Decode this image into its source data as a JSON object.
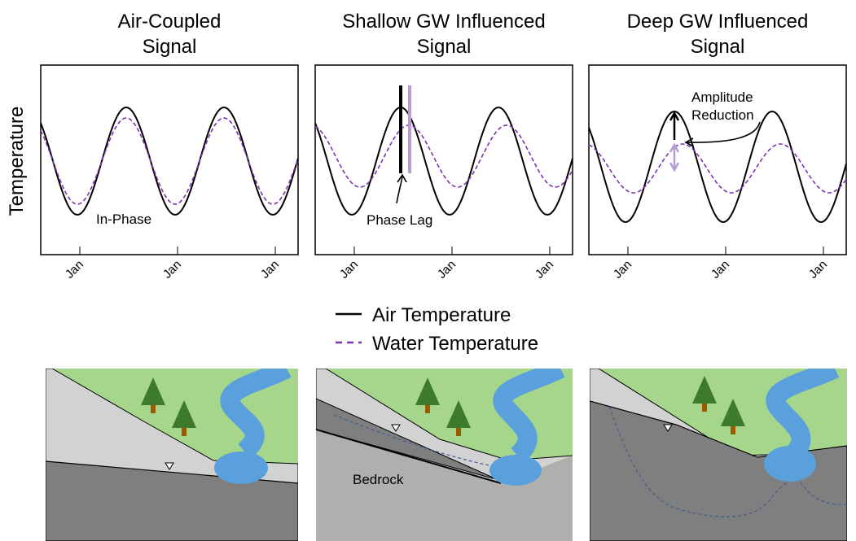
{
  "y_axis_label": "Temperature",
  "panels": [
    {
      "title_lines": [
        "Air-Coupled",
        "Signal"
      ],
      "x_tick_labels": [
        "Jan",
        "Jan",
        "Jan"
      ],
      "annotation_lines": [
        "In-Phase"
      ]
    },
    {
      "title_lines": [
        "Shallow GW Influenced",
        "Signal"
      ],
      "x_tick_labels": [
        "Jan",
        "Jan",
        "Jan"
      ],
      "annotation_lines": [
        "Phase Lag"
      ]
    },
    {
      "title_lines": [
        "Deep GW Influenced",
        "Signal"
      ],
      "x_tick_labels": [
        "Jan",
        "Jan",
        "Jan"
      ],
      "annotation_lines": [
        "Amplitude",
        "Reduction"
      ]
    }
  ],
  "legend": [
    "Air Temperature",
    "Water Temperature"
  ],
  "bedrock_label": "Bedrock"
}
